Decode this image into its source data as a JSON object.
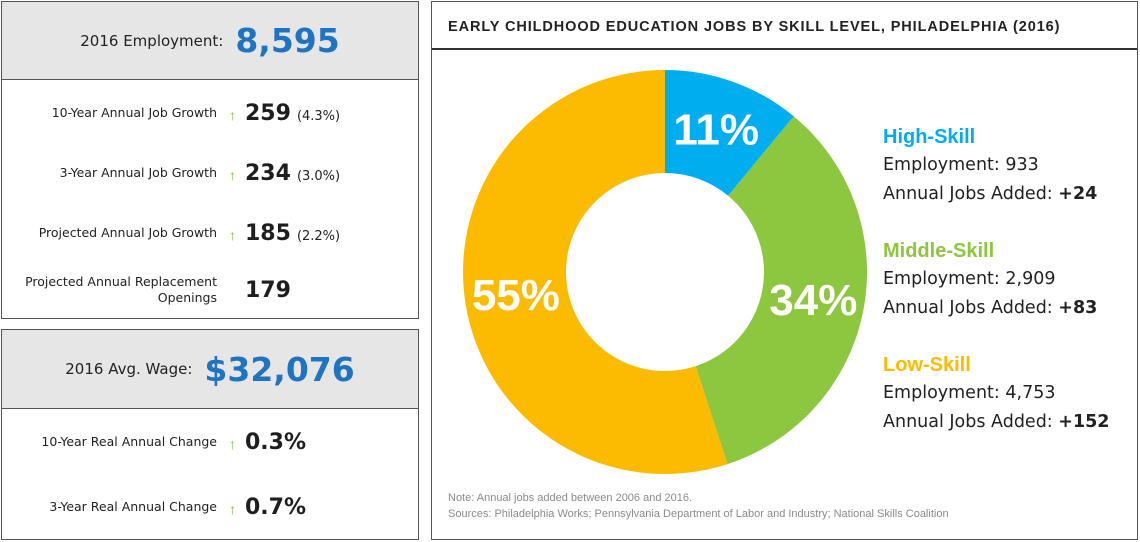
{
  "employment": {
    "label": "2016 Employment:",
    "value": "8,595",
    "rows": [
      {
        "label": "10-Year Annual Job Growth",
        "arrow": "↑",
        "value": "259",
        "pct": "(4.3%)"
      },
      {
        "label": "3-Year Annual Job Growth",
        "arrow": "↑",
        "value": "234",
        "pct": "(3.0%)"
      },
      {
        "label": "Projected Annual Job Growth",
        "arrow": "↑",
        "value": "185",
        "pct": "(2.2%)"
      },
      {
        "label": "Projected Annual Replacement Openings",
        "arrow": "",
        "value": "179",
        "pct": ""
      }
    ]
  },
  "wage": {
    "label": "2016 Avg. Wage:",
    "value": "$32,076",
    "rows": [
      {
        "label": "10-Year Real Annual Change",
        "arrow": "↑",
        "value": "0.3%"
      },
      {
        "label": "3-Year Real Annual Change",
        "arrow": "↑",
        "value": "0.7%"
      }
    ]
  },
  "chart_data": {
    "type": "pie",
    "title": "EARLY CHILDHOOD EDUCATION JOBS BY SKILL LEVEL, PHILADELPHIA (2016)",
    "categories": [
      "High-Skill",
      "Middle-Skill",
      "Low-Skill"
    ],
    "values": [
      11,
      34,
      55
    ],
    "slice_labels": [
      "11%",
      "34%",
      "55%"
    ],
    "colors": [
      "#00aeef",
      "#8dc63f",
      "#fdbb00"
    ],
    "legend": [
      {
        "name": "High-Skill",
        "employment_label": "Employment:",
        "employment": "933",
        "jobs_label": "Annual Jobs Added:",
        "jobs": "+24",
        "color": "#00aeef"
      },
      {
        "name": "Middle-Skill",
        "employment_label": "Employment:",
        "employment": "2,909",
        "jobs_label": "Annual Jobs Added:",
        "jobs": "+83",
        "color": "#8dc63f"
      },
      {
        "name": "Low-Skill",
        "employment_label": "Employment:",
        "employment": "4,753",
        "jobs_label": "Annual Jobs Added:",
        "jobs": "+152",
        "color": "#fdbb00"
      }
    ],
    "legend_position": "right",
    "note": "Note: Annual jobs added between 2006 and 2016.",
    "sources": "Sources: Philadelphia Works; Pennsylvania Department of Labor and Industry; National Skills Coalition"
  }
}
